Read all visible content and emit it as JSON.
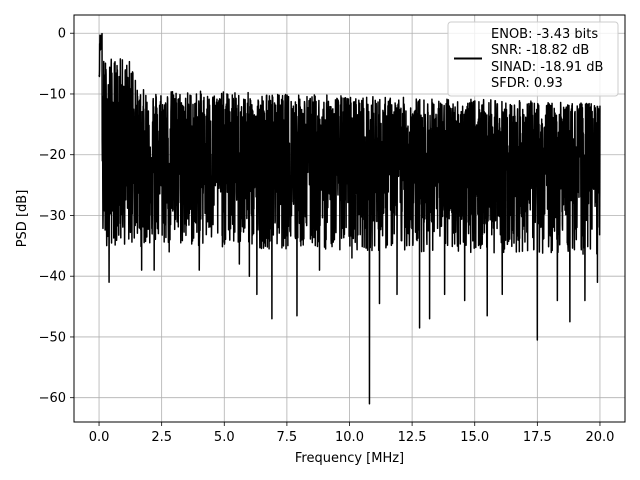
{
  "chart_data": {
    "type": "line",
    "title": "",
    "xlabel": "Frequency [MHz]",
    "ylabel": "PSD [dB]",
    "xlim": [
      -1.0,
      21.0
    ],
    "ylim": [
      -64,
      3
    ],
    "x_ticks": [
      0.0,
      2.5,
      5.0,
      7.5,
      10.0,
      12.5,
      15.0,
      17.5,
      20.0
    ],
    "x_tick_labels": [
      "0.0",
      "2.5",
      "5.0",
      "7.5",
      "10.0",
      "12.5",
      "15.0",
      "17.5",
      "20.0"
    ],
    "y_ticks": [
      0,
      -10,
      -20,
      -30,
      -40,
      -50,
      -60
    ],
    "y_tick_labels": [
      "0",
      "−10",
      "−20",
      "−30",
      "−40",
      "−50",
      "−60"
    ],
    "grid": true,
    "legend_position": "top-right",
    "legend_lines": [
      "ENOB: -3.43 bits",
      "SNR: -18.82 dB",
      "SINAD: -18.91 dB",
      "SFDR: 0.93"
    ],
    "series_color": "#000000",
    "x_range": [
      0.0,
      20.0
    ],
    "noise_floor_center_db": -21,
    "peak": {
      "x": 0.05,
      "y": 0
    },
    "spikes": [
      {
        "x": 0.4,
        "y": -41
      },
      {
        "x": 1.7,
        "y": -39
      },
      {
        "x": 2.2,
        "y": -39
      },
      {
        "x": 2.8,
        "y": -36
      },
      {
        "x": 4.0,
        "y": -39
      },
      {
        "x": 5.6,
        "y": -38
      },
      {
        "x": 6.0,
        "y": -40
      },
      {
        "x": 6.3,
        "y": -43
      },
      {
        "x": 6.9,
        "y": -47
      },
      {
        "x": 7.9,
        "y": -46.5
      },
      {
        "x": 8.8,
        "y": -39
      },
      {
        "x": 10.1,
        "y": -37
      },
      {
        "x": 10.8,
        "y": -61
      },
      {
        "x": 11.2,
        "y": -44.5
      },
      {
        "x": 11.9,
        "y": -43
      },
      {
        "x": 12.8,
        "y": -48.5
      },
      {
        "x": 13.2,
        "y": -47
      },
      {
        "x": 13.8,
        "y": -43
      },
      {
        "x": 14.6,
        "y": -44
      },
      {
        "x": 15.5,
        "y": -46.5
      },
      {
        "x": 16.1,
        "y": -43
      },
      {
        "x": 17.5,
        "y": -50.5
      },
      {
        "x": 18.3,
        "y": -44
      },
      {
        "x": 18.8,
        "y": -47.5
      },
      {
        "x": 19.4,
        "y": -44
      },
      {
        "x": 19.9,
        "y": -41
      }
    ]
  }
}
